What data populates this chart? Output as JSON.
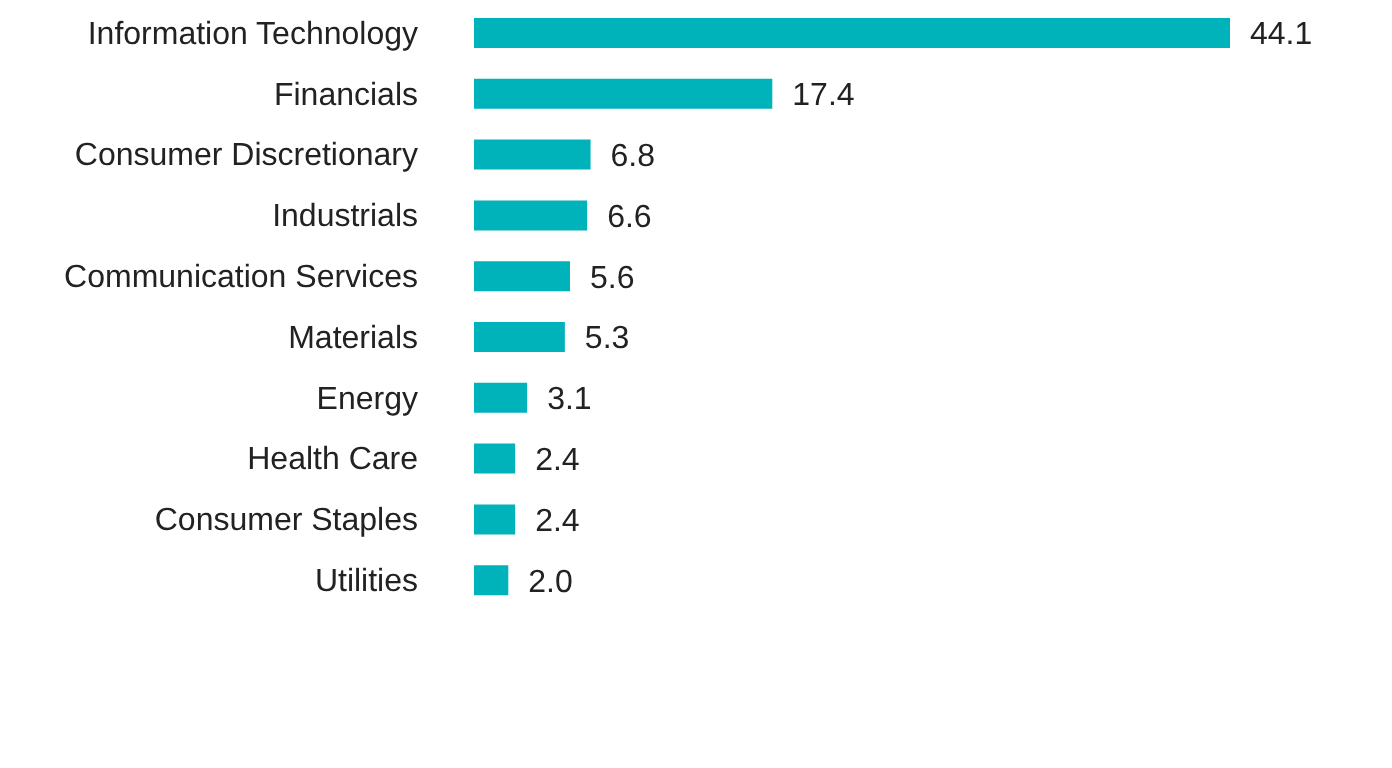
{
  "chart_data": {
    "type": "bar",
    "orientation": "horizontal",
    "categories": [
      "Information Technology",
      "Financials",
      "Consumer Discretionary",
      "Industrials",
      "Communication Services",
      "Materials",
      "Energy",
      "Health Care",
      "Consumer Staples",
      "Utilities"
    ],
    "values": [
      44.1,
      17.4,
      6.8,
      6.6,
      5.6,
      5.3,
      3.1,
      2.4,
      2.4,
      2.0
    ],
    "value_labels": [
      "44.1",
      "17.4",
      "6.8",
      "6.6",
      "5.6",
      "5.3",
      "3.1",
      "2.4",
      "2.4",
      "2.0"
    ],
    "color": "#00b2b9"
  }
}
